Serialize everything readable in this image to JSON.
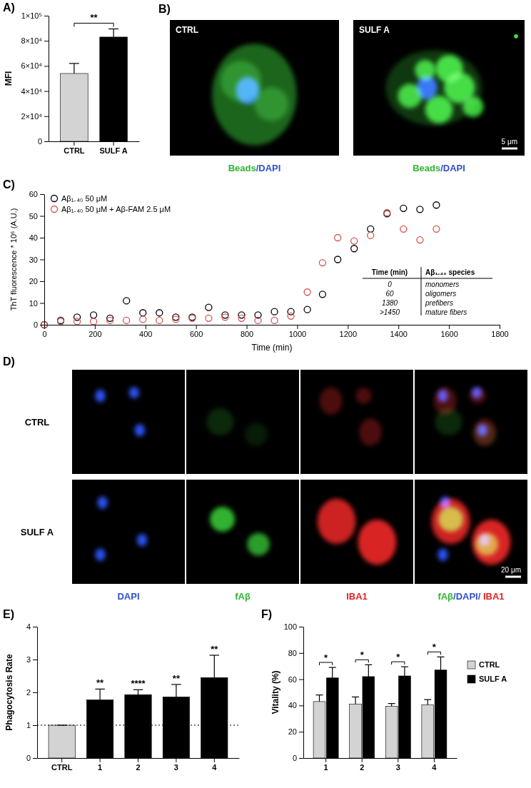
{
  "chart_data": [
    {
      "panel_label": "A)",
      "type": "bar",
      "categories": [
        "CTRL",
        "SULF A"
      ],
      "values": [
        54000,
        83000
      ],
      "errors": [
        8000,
        6500
      ],
      "colors": [
        "#d3d3d3",
        "#000000"
      ],
      "y_label": "MFI",
      "ylim": [
        0,
        100000
      ],
      "yticks": [
        0,
        {
          "value": 20000,
          "label": "2×10⁴"
        },
        {
          "value": 40000,
          "label": "4×10⁴"
        },
        {
          "value": 60000,
          "label": "6×10⁴"
        },
        {
          "value": 80000,
          "label": "8×10⁴"
        },
        {
          "value": 100000,
          "label": "1×10⁵"
        }
      ],
      "significance": "**"
    },
    {
      "panel_label": "C)",
      "type": "scatter",
      "marker": "circle-open",
      "legend": "top-left",
      "x_label": "Time (min)",
      "y_label": "ThT fluorescence * 10⁶ (A.U.)",
      "xlim": [
        0,
        1800
      ],
      "xticks": [
        0,
        200,
        400,
        600,
        800,
        1000,
        1200,
        1400,
        1600,
        1800
      ],
      "ylim": [
        0,
        60
      ],
      "yticks": [
        0,
        10,
        20,
        30,
        40,
        50,
        60
      ],
      "x": [
        0,
        65,
        130,
        195,
        260,
        325,
        390,
        455,
        520,
        585,
        650,
        715,
        780,
        845,
        910,
        975,
        1040,
        1100,
        1160,
        1225,
        1290,
        1355,
        1420,
        1485,
        1550
      ],
      "series": [
        {
          "name": "Aβ₁₋₄₀ 50 μM",
          "color": "#000000",
          "values": [
            0,
            2,
            3.5,
            4.5,
            3,
            11,
            5.5,
            5.5,
            3.5,
            3.5,
            8,
            4.5,
            4.5,
            4.5,
            6,
            6,
            7,
            14,
            30,
            35,
            44,
            51,
            53.5,
            53,
            55
          ]
        },
        {
          "name": "Aβ₁₋₄₀ 50 μM + Aβ-FAM 2.5 μM",
          "color": "#d9534f",
          "values": [
            0,
            1.5,
            1.5,
            1.5,
            2,
            2,
            2.5,
            2,
            2.5,
            3,
            3,
            3.5,
            3,
            2,
            2,
            4,
            15,
            28.5,
            40,
            38.5,
            41,
            51.5,
            44,
            39,
            44
          ]
        }
      ],
      "table": {
        "header": [
          "Time (min)",
          "Aβ₁₋₄₀ species"
        ],
        "rows": [
          [
            "0",
            "monomers"
          ],
          [
            "60",
            "oligomers"
          ],
          [
            "1380",
            "prefibers"
          ],
          [
            ">1450",
            "mature fibers"
          ]
        ]
      }
    },
    {
      "panel_label": "E)",
      "type": "bar",
      "categories": [
        "CTRL",
        "1",
        "2",
        "3",
        "4"
      ],
      "values": [
        1,
        1.77,
        1.93,
        1.86,
        2.45
      ],
      "errors": [
        0,
        0.33,
        0.15,
        0.38,
        0.68
      ],
      "colors": [
        "#d3d3d3",
        "#000000",
        "#000000",
        "#000000",
        "#000000"
      ],
      "y_label": "Phagocytosis Rate",
      "ylim": [
        0,
        4
      ],
      "yticks": [
        0,
        1,
        2,
        3,
        4
      ],
      "reference_line": 1,
      "significance": [
        null,
        "**",
        "****",
        "**",
        "**"
      ]
    },
    {
      "panel_label": "F)",
      "type": "bar",
      "categories": [
        "1",
        "2",
        "3",
        "4"
      ],
      "y_label": "Vitality (%)",
      "legend": "right",
      "ylim": [
        0,
        100
      ],
      "yticks": [
        0,
        20,
        40,
        60,
        80,
        100
      ],
      "series": [
        {
          "name": "CTRL",
          "color": "#d3d3d3",
          "values": [
            43,
            41,
            39.5,
            40.5
          ],
          "errors": [
            5,
            5.5,
            2,
            4
          ]
        },
        {
          "name": "SULF A",
          "color": "#000000",
          "values": [
            61,
            62,
            62.5,
            67
          ],
          "errors": [
            8,
            9,
            7,
            10
          ]
        }
      ],
      "significance": [
        "*",
        "*",
        "*",
        "*"
      ]
    }
  ],
  "images": [
    {
      "panel_label": "B)",
      "panels": [
        {
          "label": "CTRL"
        },
        {
          "label": "SULF A"
        }
      ],
      "caption": [
        {
          "text": "Beads",
          "color": "#2fb52f"
        },
        {
          "text": "/DAPI",
          "color": "#2f4fd0"
        }
      ],
      "scale_bar": "5 μm"
    },
    {
      "panel_label": "D)",
      "rows": [
        "CTRL",
        "SULF A"
      ],
      "captions": [
        [
          {
            "text": "DAPI",
            "color": "#2f4fd0"
          }
        ],
        [
          {
            "text": "fAβ",
            "color": "#2fb52f"
          }
        ],
        [
          {
            "text": "IBA1",
            "color": "#e02020"
          }
        ],
        [
          {
            "text": "fAβ",
            "color": "#2fb52f"
          },
          {
            "text": "/DAPI/ ",
            "color": "#2f4fd0"
          },
          {
            "text": "IBA1",
            "color": "#e02020"
          }
        ]
      ],
      "scale_bar": "20 μm"
    }
  ]
}
